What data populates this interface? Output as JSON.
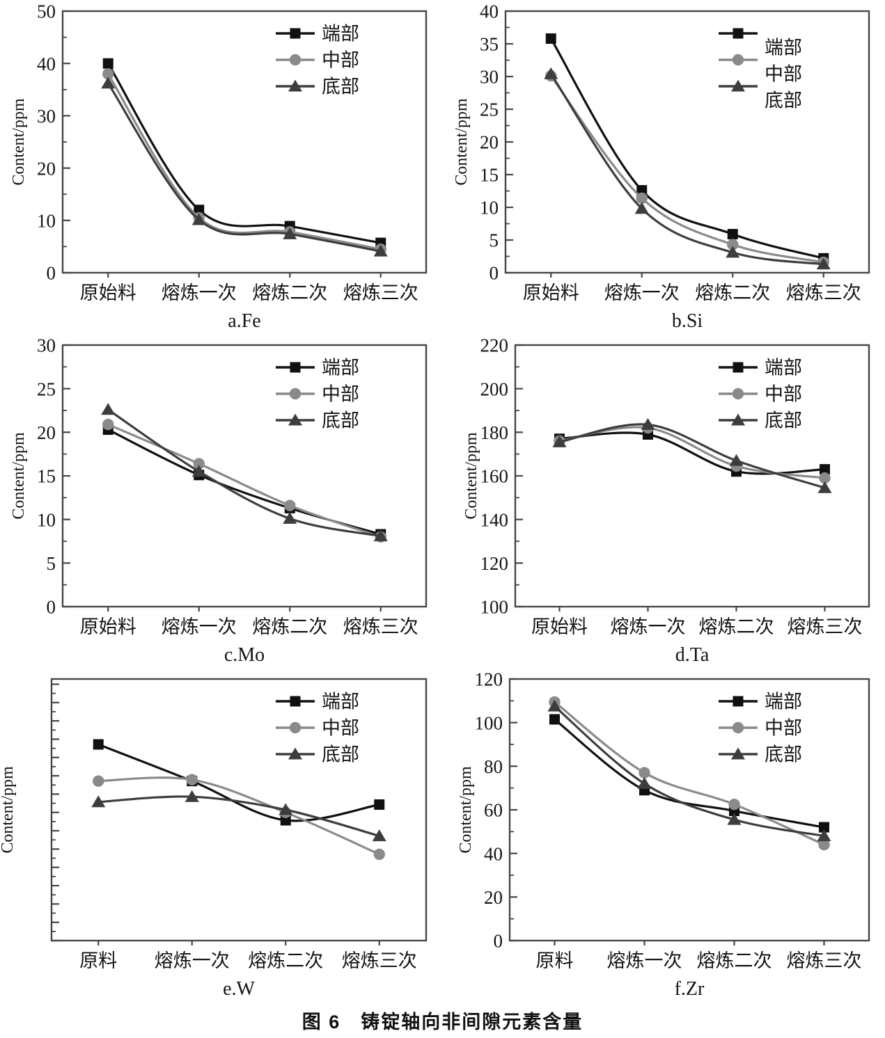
{
  "figure_caption": "图 6　铸锭轴向非间隙元素含量",
  "axis": {
    "y_label": "Content/ppm"
  },
  "legend_labels": [
    "端部",
    "中部",
    "底部"
  ],
  "series_styles": [
    {
      "name": "端部",
      "marker": "square",
      "color": "#101010"
    },
    {
      "name": "中部",
      "marker": "circle",
      "color": "#8a8a8a"
    },
    {
      "name": "底部",
      "marker": "triangle",
      "color": "#3d3d3d"
    }
  ],
  "chart_data": [
    {
      "id": "a",
      "type": "line",
      "caption": "a.Fe",
      "ylabel": "Content/ppm",
      "categories": [
        "原始料",
        "熔炼一次",
        "熔炼二次",
        "熔炼三次"
      ],
      "ylim": [
        0,
        50
      ],
      "ytick_step": 10,
      "yminor_step": 5,
      "show_ytick_labels": true,
      "legend_position": "top-right",
      "grid": false,
      "legend_label_offset": false,
      "series": [
        {
          "name": "端部",
          "values": [
            40,
            12,
            8.9,
            5.7
          ]
        },
        {
          "name": "中部",
          "values": [
            38,
            10.5,
            7.8,
            4.5
          ]
        },
        {
          "name": "底部",
          "values": [
            36.2,
            10.1,
            7.4,
            4.1
          ]
        }
      ]
    },
    {
      "id": "b",
      "type": "line",
      "caption": "b.Si",
      "ylabel": "Content/ppm",
      "categories": [
        "原始料",
        "熔炼一次",
        "熔炼二次",
        "熔炼三次"
      ],
      "ylim": [
        0,
        40
      ],
      "ytick_step": 5,
      "yminor_step": 2.5,
      "show_ytick_labels": true,
      "legend_position": "top-right",
      "grid": false,
      "legend_label_offset": true,
      "series": [
        {
          "name": "端部",
          "values": [
            35.8,
            12.6,
            5.9,
            2.2
          ]
        },
        {
          "name": "中部",
          "values": [
            30.1,
            11.4,
            4.3,
            1.6
          ]
        },
        {
          "name": "底部",
          "values": [
            30.4,
            9.8,
            3.1,
            1.3
          ]
        }
      ]
    },
    {
      "id": "c",
      "type": "line",
      "caption": "c.Mo",
      "ylabel": "Content/ppm",
      "categories": [
        "原始料",
        "熔炼一次",
        "熔炼二次",
        "熔炼三次"
      ],
      "ylim": [
        0,
        30
      ],
      "ytick_step": 5,
      "yminor_step": 2.5,
      "show_ytick_labels": true,
      "legend_position": "top-right",
      "grid": false,
      "legend_label_offset": false,
      "series": [
        {
          "name": "端部",
          "values": [
            20.3,
            15.1,
            11.3,
            8.3
          ]
        },
        {
          "name": "中部",
          "values": [
            20.9,
            16.4,
            11.6,
            8.0
          ]
        },
        {
          "name": "底部",
          "values": [
            22.6,
            15.5,
            10.1,
            8.1
          ]
        }
      ]
    },
    {
      "id": "d",
      "type": "line",
      "caption": "d.Ta",
      "ylabel": "Content/ppm",
      "categories": [
        "原始料",
        "熔炼一次",
        "熔炼二次",
        "熔炼三次"
      ],
      "ylim": [
        100,
        220
      ],
      "ytick_step": 20,
      "yminor_step": 10,
      "show_ytick_labels": true,
      "legend_position": "top-right",
      "grid": false,
      "legend_label_offset": false,
      "series": [
        {
          "name": "端部",
          "values": [
            177,
            179,
            162,
            163
          ]
        },
        {
          "name": "中部",
          "values": [
            176,
            182,
            164.5,
            159
          ]
        },
        {
          "name": "底部",
          "values": [
            175.5,
            183.5,
            167,
            154.5
          ]
        }
      ]
    },
    {
      "id": "e",
      "type": "line",
      "caption": "e.W",
      "ylabel": "Content/ppm",
      "categories": [
        "原料",
        "熔炼一次",
        "熔炼二次",
        "熔炼三次"
      ],
      "ylim": [
        0,
        100
      ],
      "ytick_step": 7,
      "yminor_step": 3.5,
      "show_ytick_labels": false,
      "legend_position": "top-right",
      "grid": false,
      "legend_label_offset": false,
      "y_axis_note": "y-axis tick labels not printed in source; values are relative estimates (0-100 of plot height)",
      "series": [
        {
          "name": "端部",
          "values": [
            75,
            61,
            46,
            52
          ]
        },
        {
          "name": "中部",
          "values": [
            61,
            61.5,
            49,
            33
          ]
        },
        {
          "name": "底部",
          "values": [
            53,
            55,
            50,
            40
          ]
        }
      ]
    },
    {
      "id": "f",
      "type": "line",
      "caption": "f.Zr",
      "ylabel": "Content/ppm",
      "categories": [
        "原料",
        "熔炼一次",
        "熔炼二次",
        "熔炼三次"
      ],
      "ylim": [
        0,
        120
      ],
      "ytick_step": 20,
      "yminor_step": 10,
      "show_ytick_labels": true,
      "legend_position": "top-right",
      "grid": false,
      "legend_label_offset": false,
      "series": [
        {
          "name": "端部",
          "values": [
            101.5,
            69,
            59.5,
            52
          ]
        },
        {
          "name": "中部",
          "values": [
            109.5,
            77,
            62.5,
            44
          ]
        },
        {
          "name": "底部",
          "values": [
            107.5,
            72,
            55.5,
            48
          ]
        }
      ]
    }
  ]
}
